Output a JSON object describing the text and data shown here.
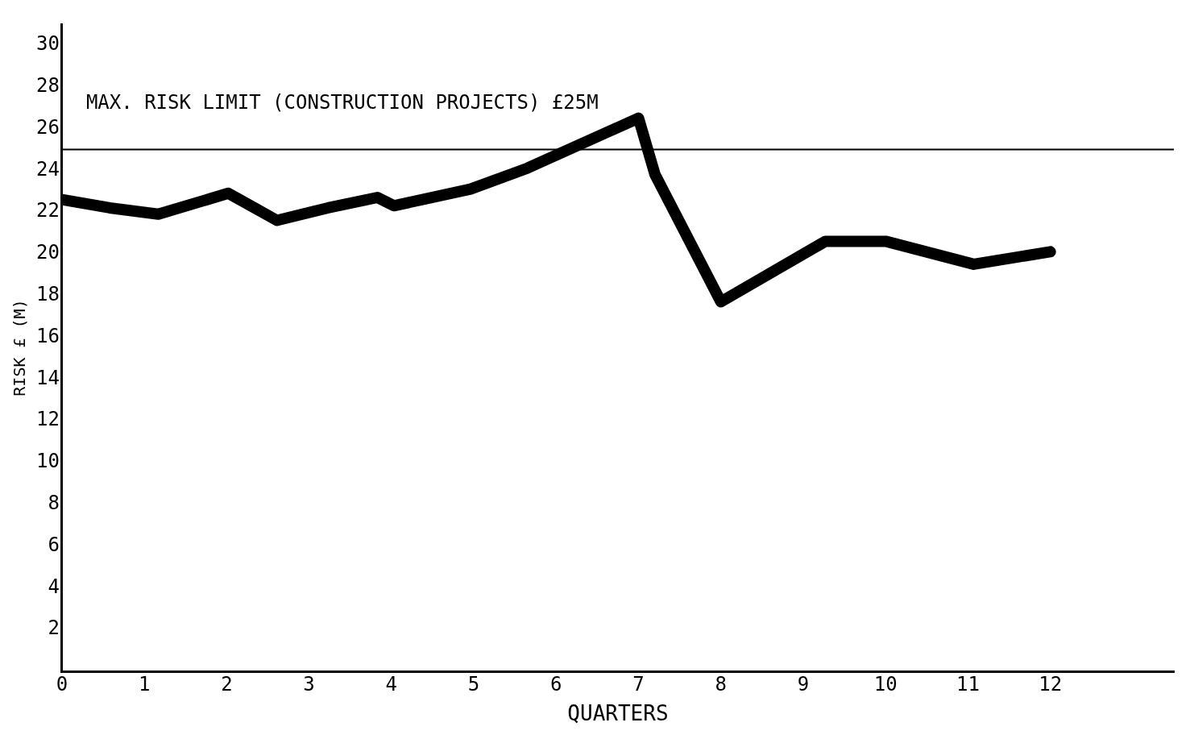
{
  "chart_data": {
    "type": "line",
    "xlabel": "QUARTERS",
    "ylabel": "RISK £ (M)",
    "series": [
      {
        "color": "#000000",
        "x": [
          0,
          0.58,
          1.17,
          2.02,
          2.61,
          3.23,
          3.83,
          4.03,
          4.96,
          5.65,
          7.0,
          7.2,
          8.0,
          9.27,
          10.0,
          11.07,
          12
        ],
        "values": [
          22.6,
          22.2,
          21.9,
          22.9,
          21.6,
          22.2,
          22.7,
          22.3,
          23.1,
          24.1,
          26.5,
          23.8,
          17.7,
          20.6,
          20.6,
          19.5,
          20.1
        ]
      }
    ],
    "xlim": [
      0,
      13.5
    ],
    "xticks": [
      0,
      1,
      2,
      3,
      4,
      5,
      6,
      7,
      8,
      9,
      10,
      11,
      12
    ],
    "ylim": [
      0,
      31
    ],
    "yticks": [
      2,
      4,
      6,
      8,
      10,
      12,
      14,
      16,
      18,
      20,
      22,
      24,
      26,
      28,
      30
    ],
    "ref_lines": [
      {
        "axis": "y",
        "value": 25,
        "label": "MAX. RISK LIMIT (CONSTRUCTION PROJECTS) £25M",
        "color": "#000000"
      }
    ],
    "grid": false,
    "legend": false,
    "marker": "none",
    "line_style": "solid"
  }
}
